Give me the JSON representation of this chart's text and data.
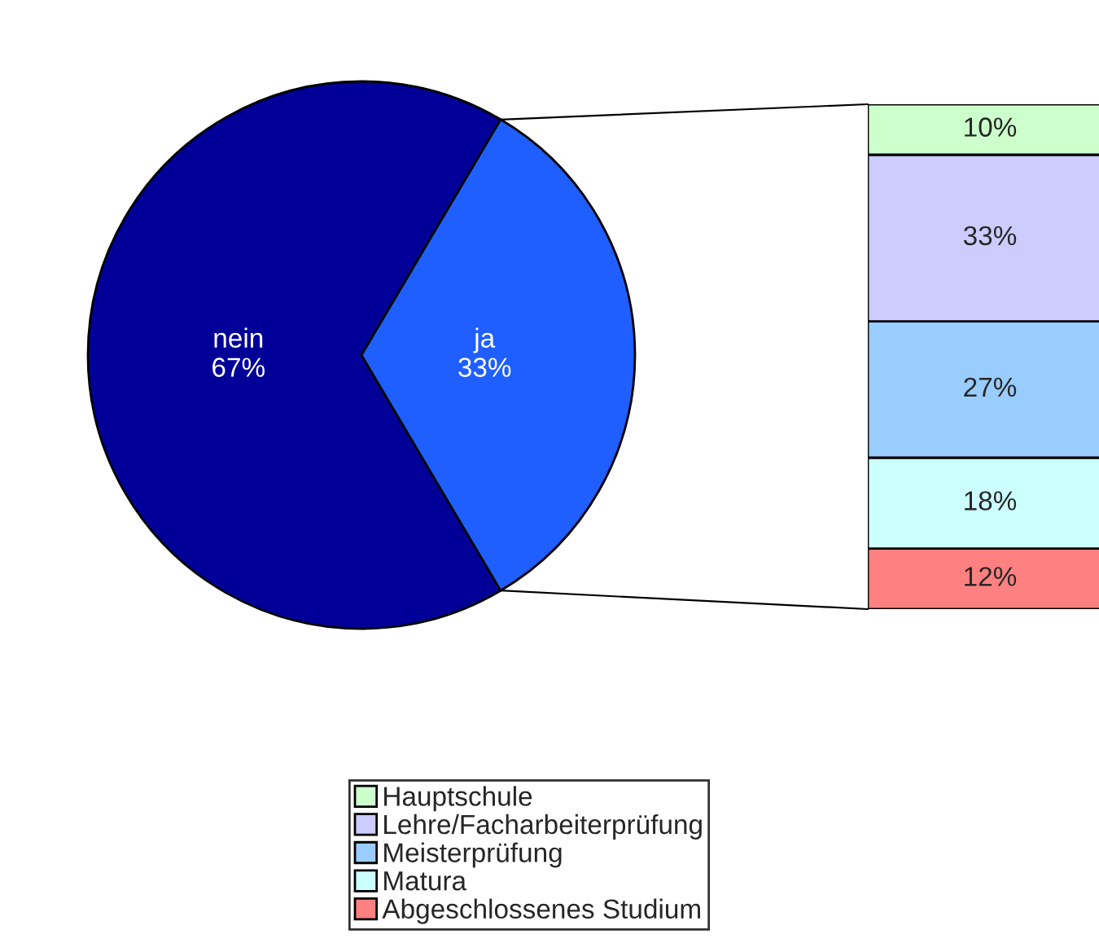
{
  "chart_data": [
    {
      "type": "pie",
      "categories": [
        "nein",
        "ja"
      ],
      "values": [
        67,
        33
      ],
      "colors": [
        "#000099",
        "#1f5fff"
      ],
      "value_labels": [
        "67%",
        "33%"
      ]
    },
    {
      "type": "bar",
      "stacked": true,
      "categories": [
        null
      ],
      "legend": "bottom",
      "series": [
        {
          "name": "Abgeschlossenes Studium",
          "color": "#ff8080",
          "values": [
            12
          ],
          "value_labels": [
            "12%"
          ]
        },
        {
          "name": "Matura",
          "color": "#ccffff",
          "values": [
            18
          ],
          "value_labels": [
            "18%"
          ]
        },
        {
          "name": "Meisterprüfung",
          "color": "#99ccff",
          "values": [
            27
          ],
          "value_labels": [
            "27%"
          ]
        },
        {
          "name": "Lehre/Facharbeiterprüfung",
          "color": "#ccccff",
          "values": [
            33
          ],
          "value_labels": [
            "33%"
          ]
        },
        {
          "name": "Hauptschule",
          "color": "#ccffcc",
          "values": [
            10
          ],
          "value_labels": [
            "10%"
          ]
        }
      ]
    }
  ]
}
